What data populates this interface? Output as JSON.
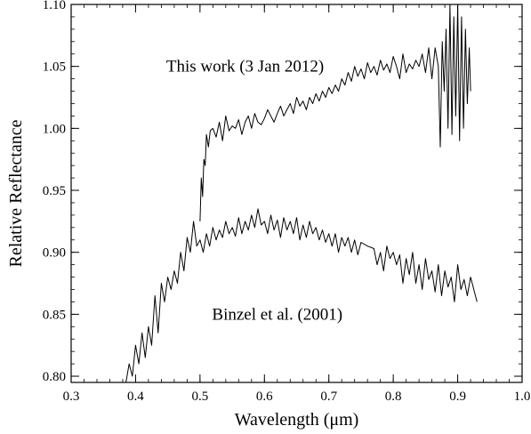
{
  "chart_data": {
    "type": "line",
    "xlabel": "Wavelength (μm)",
    "ylabel": "Relative Reflectance",
    "xlim": [
      0.3,
      1.0
    ],
    "ylim": [
      0.795,
      1.1
    ],
    "xticks": [
      "0.3",
      "0.4",
      "0.5",
      "0.6",
      "0.7",
      "0.8",
      "0.9",
      "1.0"
    ],
    "yticks": [
      "0.80",
      "0.85",
      "0.90",
      "0.95",
      "1.00",
      "1.05",
      "1.10"
    ],
    "grid": false,
    "annotations": [
      {
        "text": "This work (3 Jan 2012)",
        "x": 0.57,
        "y": 1.05
      },
      {
        "text": "Binzel et al. (2001)",
        "x": 0.62,
        "y": 0.85
      }
    ],
    "series": [
      {
        "color": "#000000",
        "x": [
          0.5,
          0.502,
          0.504,
          0.506,
          0.508,
          0.51,
          0.513,
          0.516,
          0.52,
          0.525,
          0.53,
          0.535,
          0.54,
          0.545,
          0.55,
          0.555,
          0.56,
          0.565,
          0.57,
          0.575,
          0.58,
          0.585,
          0.59,
          0.595,
          0.6,
          0.605,
          0.61,
          0.615,
          0.62,
          0.625,
          0.63,
          0.635,
          0.64,
          0.645,
          0.65,
          0.655,
          0.66,
          0.665,
          0.67,
          0.675,
          0.68,
          0.685,
          0.69,
          0.695,
          0.7,
          0.705,
          0.71,
          0.715,
          0.72,
          0.725,
          0.73,
          0.735,
          0.74,
          0.745,
          0.75,
          0.755,
          0.76,
          0.765,
          0.77,
          0.775,
          0.78,
          0.785,
          0.79,
          0.795,
          0.8,
          0.805,
          0.81,
          0.815,
          0.82,
          0.825,
          0.83,
          0.835,
          0.84,
          0.845,
          0.85,
          0.855,
          0.86,
          0.865,
          0.87,
          0.873,
          0.876,
          0.879,
          0.882,
          0.885,
          0.888,
          0.891,
          0.894,
          0.897,
          0.9,
          0.903,
          0.906,
          0.909,
          0.912,
          0.915,
          0.918,
          0.92
        ],
        "y": [
          0.925,
          0.96,
          0.945,
          0.975,
          0.97,
          0.995,
          0.985,
          0.998,
          1.0,
          0.993,
          1.005,
          0.99,
          1.01,
          0.998,
          1.002,
          1.0,
          1.007,
          0.995,
          1.005,
          1.01,
          1.0,
          1.012,
          1.005,
          1.003,
          1.008,
          1.015,
          1.01,
          1.005,
          1.012,
          1.018,
          1.01,
          1.015,
          1.02,
          1.012,
          1.025,
          1.018,
          1.022,
          1.015,
          1.025,
          1.02,
          1.028,
          1.022,
          1.03,
          1.025,
          1.033,
          1.028,
          1.035,
          1.03,
          1.04,
          1.035,
          1.045,
          1.038,
          1.05,
          1.042,
          1.048,
          1.04,
          1.053,
          1.045,
          1.05,
          1.043,
          1.055,
          1.047,
          1.052,
          1.045,
          1.058,
          1.05,
          1.04,
          1.06,
          1.045,
          1.052,
          1.048,
          1.055,
          1.05,
          1.06,
          1.045,
          1.065,
          1.04,
          1.065,
          1.05,
          0.985,
          1.07,
          1.03,
          1.08,
          1.0,
          1.1,
          0.995,
          1.09,
          1.01,
          1.1,
          0.99,
          1.09,
          1.0,
          1.08,
          1.02,
          1.065,
          1.03
        ]
      },
      {
        "color": "#000000",
        "x": [
          0.385,
          0.39,
          0.395,
          0.4,
          0.405,
          0.41,
          0.415,
          0.42,
          0.425,
          0.43,
          0.435,
          0.44,
          0.445,
          0.45,
          0.455,
          0.46,
          0.465,
          0.47,
          0.475,
          0.48,
          0.485,
          0.49,
          0.495,
          0.5,
          0.505,
          0.51,
          0.515,
          0.52,
          0.525,
          0.53,
          0.535,
          0.54,
          0.545,
          0.55,
          0.555,
          0.56,
          0.565,
          0.57,
          0.575,
          0.58,
          0.585,
          0.59,
          0.595,
          0.6,
          0.605,
          0.61,
          0.615,
          0.62,
          0.625,
          0.63,
          0.635,
          0.64,
          0.645,
          0.65,
          0.655,
          0.66,
          0.665,
          0.67,
          0.675,
          0.68,
          0.685,
          0.69,
          0.695,
          0.7,
          0.705,
          0.71,
          0.715,
          0.72,
          0.725,
          0.73,
          0.735,
          0.74,
          0.745,
          0.75,
          0.76,
          0.77,
          0.775,
          0.78,
          0.785,
          0.79,
          0.795,
          0.8,
          0.805,
          0.81,
          0.815,
          0.82,
          0.825,
          0.83,
          0.835,
          0.84,
          0.845,
          0.85,
          0.855,
          0.86,
          0.865,
          0.87,
          0.875,
          0.88,
          0.885,
          0.89,
          0.895,
          0.9,
          0.905,
          0.91,
          0.915,
          0.92,
          0.925,
          0.93
        ],
        "y": [
          0.795,
          0.81,
          0.8,
          0.825,
          0.81,
          0.835,
          0.815,
          0.84,
          0.825,
          0.865,
          0.835,
          0.875,
          0.86,
          0.88,
          0.87,
          0.885,
          0.875,
          0.9,
          0.885,
          0.912,
          0.9,
          0.925,
          0.905,
          0.91,
          0.9,
          0.915,
          0.905,
          0.92,
          0.91,
          0.918,
          0.912,
          0.925,
          0.915,
          0.92,
          0.913,
          0.928,
          0.915,
          0.925,
          0.918,
          0.93,
          0.92,
          0.935,
          0.922,
          0.925,
          0.915,
          0.93,
          0.918,
          0.926,
          0.912,
          0.928,
          0.918,
          0.925,
          0.915,
          0.928,
          0.91,
          0.922,
          0.912,
          0.925,
          0.915,
          0.92,
          0.91,
          0.918,
          0.908,
          0.915,
          0.905,
          0.915,
          0.9,
          0.912,
          0.905,
          0.912,
          0.9,
          0.91,
          0.898,
          0.908,
          0.905,
          0.903,
          0.89,
          0.9,
          0.885,
          0.905,
          0.895,
          0.9,
          0.89,
          0.898,
          0.875,
          0.895,
          0.882,
          0.9,
          0.875,
          0.89,
          0.87,
          0.895,
          0.878,
          0.885,
          0.868,
          0.89,
          0.865,
          0.885,
          0.872,
          0.88,
          0.86,
          0.89,
          0.87,
          0.878,
          0.865,
          0.88,
          0.87,
          0.86
        ]
      }
    ]
  }
}
